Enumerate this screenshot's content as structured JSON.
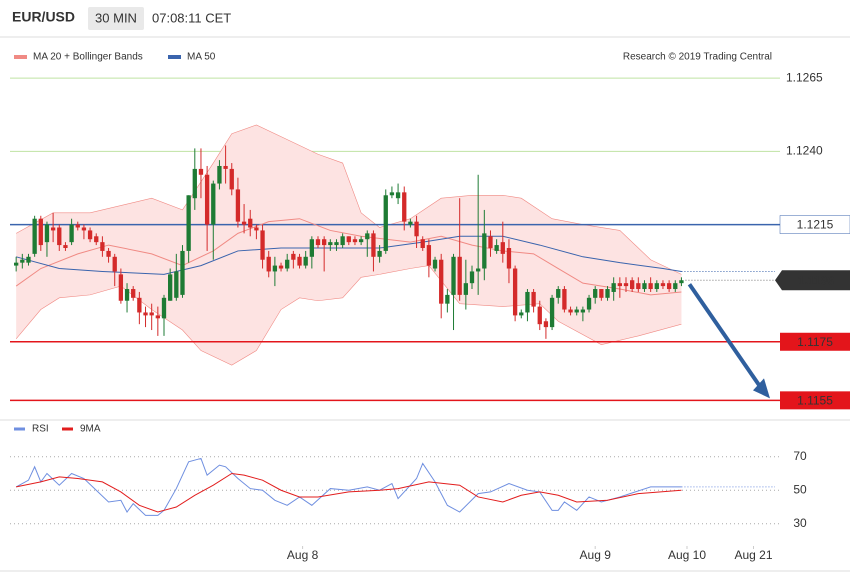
{
  "header": {
    "symbol": "EUR/USD",
    "interval": "30 MIN",
    "time": "07:08:11 CET"
  },
  "chart_data": [
    {
      "type": "candlestick",
      "source": "Research © 2019 Trading Central",
      "xlim": [
        -1,
        124
      ],
      "ylim": [
        1.115,
        1.1278
      ],
      "yticks": [
        {
          "value": 1.124,
          "label": "1.1240"
        },
        1.1265
      ],
      "tick_color": "#5aa514",
      "up_color": "#1e7b34",
      "down_color": "#d42a2a",
      "candles": {
        "open": [
          1.1201,
          1.1202,
          1.1202,
          1.1205,
          1.1217,
          1.1209,
          1.1214,
          1.1214,
          1.1208,
          1.1209,
          1.1215,
          1.1214,
          1.1213,
          1.1211,
          1.1209,
          1.1206,
          1.1204,
          1.1198,
          1.1189,
          1.1193,
          1.119,
          1.1185,
          1.1185,
          1.1184,
          1.1183,
          1.1189,
          1.119,
          1.1191,
          1.1206,
          1.1224,
          1.1234,
          1.1232,
          1.1215,
          1.1229,
          1.1235,
          1.1234,
          1.1227,
          1.1216,
          1.1217,
          1.1214,
          1.1213,
          1.1204,
          1.1199,
          1.1201,
          1.12,
          1.1205,
          1.1204,
          1.1201,
          1.1204,
          1.121,
          1.121,
          1.1208,
          1.1208,
          1.1208,
          1.1211,
          1.121,
          1.1209,
          1.121,
          1.1212,
          1.1204,
          1.1206,
          1.1225,
          1.1224,
          1.1226,
          1.1215,
          1.1216,
          1.121,
          1.1208,
          1.12,
          1.1203,
          1.1188,
          1.1191,
          1.1204,
          1.1191,
          1.1195,
          1.1199,
          1.12,
          1.1211,
          1.1206,
          1.1209,
          1.1207,
          1.12,
          1.1184,
          1.1185,
          1.1192,
          1.1187,
          1.1182,
          1.118,
          1.119,
          1.1193,
          1.1186,
          1.1185,
          1.1185,
          1.1186,
          1.119,
          1.1193,
          1.119,
          1.1192,
          1.1195,
          1.1195,
          1.1196,
          1.1195,
          1.1193,
          1.1195,
          1.1193,
          1.1195,
          1.1195,
          1.1193,
          1.1195
        ],
        "high": [
          1.1204,
          1.1205,
          1.1205,
          1.1218,
          1.1218,
          1.1216,
          1.1219,
          1.1215,
          1.1209,
          1.1217,
          1.1216,
          1.1215,
          1.1214,
          1.1212,
          1.1211,
          1.1207,
          1.1205,
          1.12,
          1.1195,
          1.1194,
          1.1192,
          1.1187,
          1.1188,
          1.1187,
          1.1191,
          1.12,
          1.1205,
          1.1208,
          1.1225,
          1.1241,
          1.1241,
          1.1235,
          1.123,
          1.1237,
          1.1242,
          1.1236,
          1.1231,
          1.1222,
          1.122,
          1.1215,
          1.1215,
          1.1206,
          1.1204,
          1.1202,
          1.1205,
          1.1206,
          1.1205,
          1.1206,
          1.1211,
          1.1211,
          1.1211,
          1.121,
          1.121,
          1.1212,
          1.1211,
          1.1211,
          1.1211,
          1.1213,
          1.1213,
          1.1208,
          1.1227,
          1.1228,
          1.1229,
          1.1228,
          1.1217,
          1.1218,
          1.1211,
          1.121,
          1.1204,
          1.1205,
          1.1193,
          1.1205,
          1.1224,
          1.1203,
          1.1201,
          1.1232,
          1.122,
          1.1213,
          1.121,
          1.1216,
          1.121,
          1.1201,
          1.1186,
          1.1193,
          1.1193,
          1.1189,
          1.1183,
          1.1191,
          1.1194,
          1.1194,
          1.1187,
          1.1187,
          1.1187,
          1.1191,
          1.1194,
          1.1193,
          1.1194,
          1.1197,
          1.1197,
          1.1197,
          1.1197,
          1.1197,
          1.1196,
          1.1197,
          1.1196,
          1.1196,
          1.1196,
          1.1196,
          1.1197
        ],
        "low": [
          1.1199,
          1.12,
          1.1201,
          1.1204,
          1.1206,
          1.1204,
          1.1209,
          1.1206,
          1.1206,
          1.1208,
          1.1213,
          1.121,
          1.1209,
          1.1208,
          1.1204,
          1.1202,
          1.1194,
          1.1188,
          1.1185,
          1.1189,
          1.1181,
          1.118,
          1.1179,
          1.1177,
          1.1177,
          1.1189,
          1.1189,
          1.119,
          1.1202,
          1.122,
          1.1224,
          1.1206,
          1.1203,
          1.1227,
          1.1229,
          1.1225,
          1.1214,
          1.1212,
          1.1211,
          1.121,
          1.12,
          1.1197,
          1.1194,
          1.1199,
          1.1199,
          1.12,
          1.12,
          1.12,
          1.12,
          1.1207,
          1.1199,
          1.1206,
          1.1206,
          1.1207,
          1.1208,
          1.1208,
          1.1208,
          1.1204,
          1.1199,
          1.1202,
          1.1205,
          1.1224,
          1.1222,
          1.1213,
          1.1214,
          1.1207,
          1.1206,
          1.1197,
          1.1199,
          1.1183,
          1.1185,
          1.1179,
          1.1189,
          1.1186,
          1.1193,
          1.1191,
          1.1196,
          1.1204,
          1.1205,
          1.1202,
          1.1195,
          1.1182,
          1.1183,
          1.1182,
          1.1185,
          1.1179,
          1.1176,
          1.1179,
          1.1188,
          1.1185,
          1.1184,
          1.1184,
          1.1182,
          1.1185,
          1.1188,
          1.1189,
          1.1189,
          1.1189,
          1.119,
          1.1192,
          1.1192,
          1.1192,
          1.1192,
          1.1192,
          1.1192,
          1.1193,
          1.1192,
          1.1192,
          1.1194
        ],
        "close": [
          1.1202,
          1.1203,
          1.1204,
          1.1217,
          1.1208,
          1.1215,
          1.1213,
          1.1208,
          1.1207,
          1.1215,
          1.1214,
          1.1213,
          1.121,
          1.1209,
          1.1206,
          1.1204,
          1.1199,
          1.1189,
          1.1193,
          1.119,
          1.1185,
          1.1184,
          1.1184,
          1.1183,
          1.119,
          1.1198,
          1.1199,
          1.1206,
          1.1225,
          1.1234,
          1.1232,
          1.1215,
          1.1229,
          1.1235,
          1.1234,
          1.1227,
          1.1216,
          1.1215,
          1.1214,
          1.1213,
          1.1203,
          1.1199,
          1.1201,
          1.12,
          1.1203,
          1.1203,
          1.1201,
          1.1204,
          1.121,
          1.1208,
          1.1208,
          1.1209,
          1.1209,
          1.1211,
          1.1209,
          1.1209,
          1.121,
          1.1212,
          1.1204,
          1.1206,
          1.1225,
          1.1226,
          1.1226,
          1.1216,
          1.1216,
          1.1211,
          1.1207,
          1.1201,
          1.1203,
          1.1188,
          1.1191,
          1.1204,
          1.1191,
          1.1195,
          1.1199,
          1.12,
          1.1212,
          1.1207,
          1.1208,
          1.1205,
          1.12,
          1.1184,
          1.1185,
          1.1192,
          1.1187,
          1.1181,
          1.118,
          1.119,
          1.1193,
          1.1186,
          1.1185,
          1.1186,
          1.1186,
          1.119,
          1.1193,
          1.119,
          1.1193,
          1.1195,
          1.1194,
          1.1194,
          1.1193,
          1.1193,
          1.1195,
          1.1193,
          1.1195,
          1.1194,
          1.1193,
          1.1195,
          1.1196
        ]
      },
      "overlays": [
        {
          "name": "MA 20 + Bollinger Bands",
          "color": "#f08a84",
          "band_color": "#fde3e2",
          "x": [
            0,
            4,
            10,
            15,
            22,
            27,
            32,
            36,
            41,
            46,
            51,
            56,
            64,
            69,
            74,
            79,
            84,
            88,
            92,
            98,
            103,
            108
          ],
          "values": [
            1.1194,
            1.12,
            1.1205,
            1.1208,
            1.1205,
            1.1201,
            1.1206,
            1.1212,
            1.1216,
            1.1217,
            1.1213,
            1.1211,
            1.1209,
            1.1211,
            1.1208,
            1.1206,
            1.1205,
            1.12,
            1.1195,
            1.1193,
            1.1191,
            1.1192
          ],
          "upper": {
            "x": [
              0,
              6,
              12,
              18,
              22,
              27,
              32,
              35,
              39,
              45,
              49,
              53,
              56,
              59,
              64,
              69,
              74,
              79,
              82,
              87,
              92,
              98,
              103,
              108
            ],
            "values": [
              1.1212,
              1.1219,
              1.1219,
              1.1222,
              1.1224,
              1.122,
              1.1236,
              1.1246,
              1.1249,
              1.1243,
              1.1239,
              1.1236,
              1.1219,
              1.1214,
              1.1217,
              1.1224,
              1.1225,
              1.1225,
              1.1224,
              1.1217,
              1.1215,
              1.1213,
              1.1203,
              1.1198
            ]
          },
          "lower": {
            "x": [
              0,
              4,
              7,
              12,
              17,
              22,
              27,
              30,
              35,
              39,
              43,
              46,
              49,
              53,
              56,
              59,
              64,
              67,
              72,
              79,
              85,
              88,
              95,
              101,
              108
            ],
            "values": [
              1.1176,
              1.1186,
              1.119,
              1.1191,
              1.1194,
              1.1186,
              1.1179,
              1.1172,
              1.1167,
              1.1172,
              1.1186,
              1.119,
              1.1189,
              1.119,
              1.1197,
              1.1198,
              1.12,
              1.1201,
              1.1188,
              1.1187,
              1.1188,
              1.1182,
              1.1174,
              1.1177,
              1.1181
            ]
          }
        },
        {
          "name": "MA 50",
          "color": "#3a64ad",
          "x": [
            0,
            7,
            14,
            24,
            30,
            36,
            43,
            51,
            59,
            66,
            72,
            79,
            85,
            92,
            98,
            105,
            108
          ],
          "values": [
            1.1204,
            1.12,
            1.1199,
            1.1198,
            1.1201,
            1.1206,
            1.1207,
            1.1207,
            1.1207,
            1.1209,
            1.1211,
            1.1211,
            1.1208,
            1.1204,
            1.1202,
            1.12,
            1.1199
          ]
        }
      ],
      "levels": [
        {
          "value": 1.1215,
          "label": "1.1215",
          "color": "#3a64ad",
          "style": "line"
        },
        {
          "value": 1.1175,
          "label": "1.1175",
          "color": "#e3151b",
          "style": "filled"
        },
        {
          "value": 1.1155,
          "label": "1.1155",
          "color": "#e3151b",
          "style": "filled"
        }
      ],
      "last_price": {
        "value": 1.1196,
        "label": "1.1196",
        "color": "#333333"
      },
      "arrow_color": "#2f5f9e"
    },
    {
      "type": "line",
      "xlim": [
        -1,
        124
      ],
      "ylim": [
        20,
        80
      ],
      "yticks": [
        30,
        50,
        70
      ],
      "xticks": [
        {
          "value": 46.5,
          "label": "Aug 8"
        },
        {
          "value": 94,
          "label": "Aug 9"
        },
        {
          "value": 108.9,
          "label": "Aug 10"
        },
        {
          "value": 119.7,
          "label": "Aug 21"
        }
      ],
      "series": [
        {
          "name": "RSI",
          "color": "#6f8fe0",
          "x": [
            0,
            2,
            3,
            4,
            5,
            7,
            9,
            11,
            13,
            15,
            17,
            18,
            19,
            21,
            23,
            24,
            26,
            28,
            30,
            31,
            33,
            34,
            36,
            38,
            40,
            42,
            44,
            46,
            48,
            51,
            54,
            57,
            59,
            61,
            62,
            65,
            66,
            68,
            70,
            72,
            75,
            77,
            80,
            83,
            85,
            87,
            88,
            89,
            91,
            93,
            95,
            98,
            103,
            108
          ],
          "values": [
            52,
            56,
            64,
            55,
            60,
            53,
            60,
            57,
            50,
            43,
            44,
            37,
            42,
            35,
            35,
            38,
            51,
            67,
            69,
            59,
            65,
            64,
            57,
            51,
            50,
            44,
            41,
            46,
            41,
            51,
            50,
            52,
            50,
            54,
            45,
            57,
            66,
            55,
            41,
            37,
            48,
            49,
            54,
            50,
            49,
            38,
            38,
            43,
            38,
            46,
            43,
            46,
            52,
            52
          ]
        },
        {
          "name": "9MA",
          "color": "#e21d1d",
          "x": [
            0,
            4,
            7,
            10,
            14,
            17,
            20,
            23,
            26,
            29,
            32,
            35,
            37,
            40,
            43,
            46,
            49,
            54,
            59,
            62,
            67,
            72,
            75,
            79,
            82,
            85,
            88,
            91,
            96,
            101,
            108
          ],
          "values": [
            52,
            55,
            58,
            57,
            55,
            49,
            41,
            37,
            40,
            47,
            53,
            60,
            59,
            56,
            50,
            46,
            46,
            49,
            50,
            51,
            55,
            53,
            46,
            43,
            47,
            49,
            47,
            43,
            44,
            48,
            50
          ]
        }
      ]
    }
  ]
}
